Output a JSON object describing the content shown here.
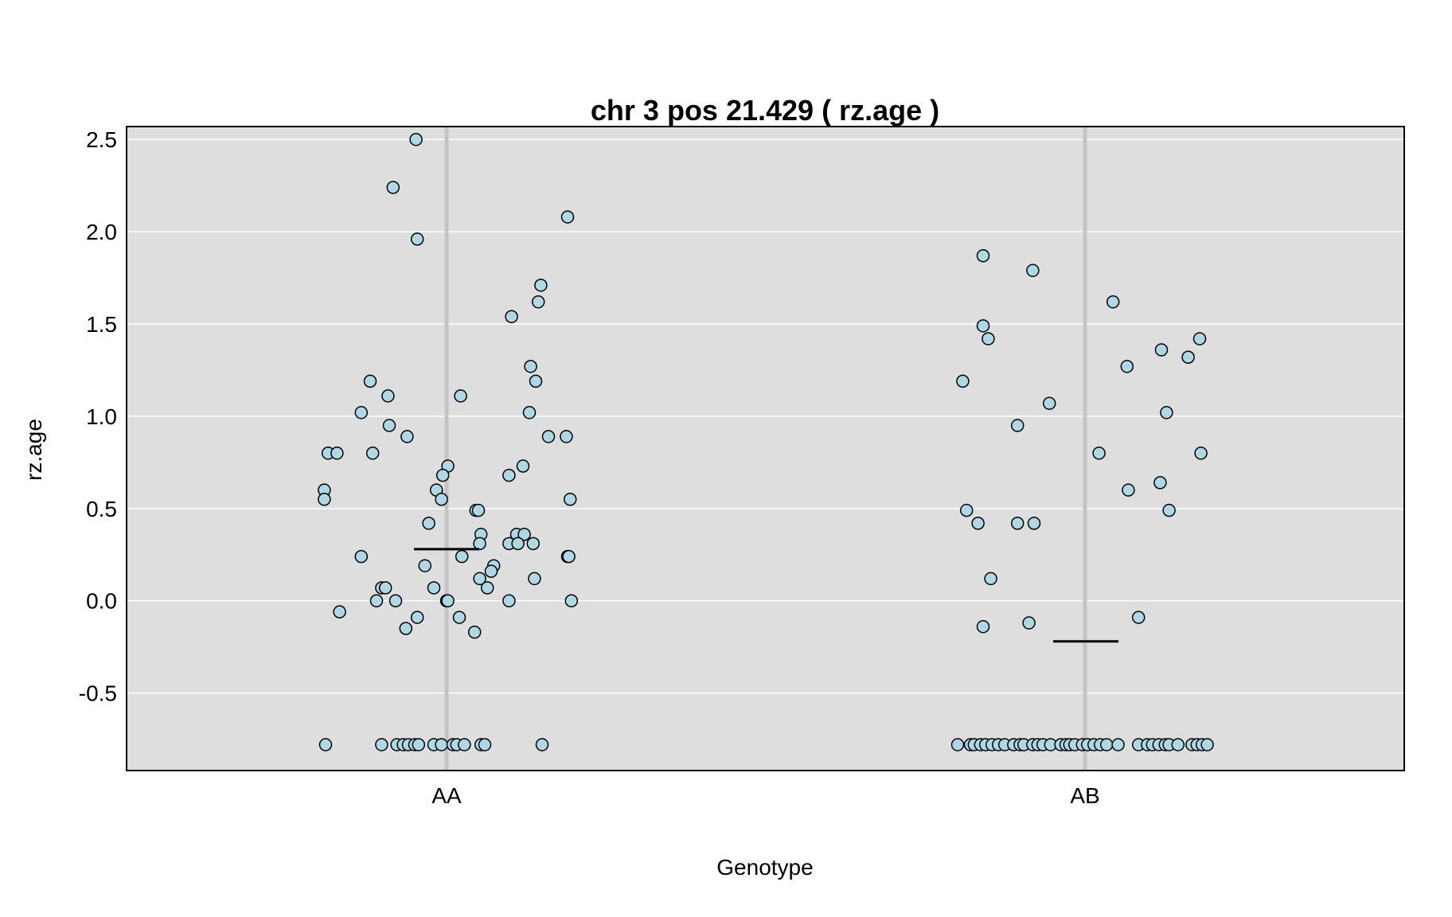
{
  "chart_data": {
    "type": "scatter",
    "title": "chr 3 pos 21.429 ( rz.age )",
    "xlabel": "Genotype",
    "ylabel": "rz.age",
    "categories": [
      "AA",
      "AB"
    ],
    "ylim": [
      -0.92,
      2.57
    ],
    "yticks": [
      "2.5",
      "2.0",
      "1.5",
      "1.0",
      "0.5",
      "0.0",
      "-0.5"
    ],
    "grid": true,
    "colors": {
      "panel": "#dedede",
      "grid": "#ffffff",
      "category_line": "#c4c4c4",
      "point_fill": "#add8e6",
      "point_stroke": "#000000"
    },
    "means": [
      0.28,
      -0.22
    ],
    "series": [
      {
        "category": "AA",
        "points": [
          [
            -0.24,
            2.5
          ],
          [
            -0.42,
            2.24
          ],
          [
            -0.23,
            1.96
          ],
          [
            0.95,
            2.08
          ],
          [
            0.74,
            1.71
          ],
          [
            0.72,
            1.62
          ],
          [
            0.51,
            1.54
          ],
          [
            0.66,
            1.27
          ],
          [
            0.7,
            1.19
          ],
          [
            -0.6,
            1.19
          ],
          [
            -0.46,
            1.11
          ],
          [
            0.11,
            1.11
          ],
          [
            -0.67,
            1.02
          ],
          [
            0.65,
            1.02
          ],
          [
            -0.45,
            0.95
          ],
          [
            -0.31,
            0.89
          ],
          [
            0.8,
            0.89
          ],
          [
            0.94,
            0.89
          ],
          [
            -0.93,
            0.8
          ],
          [
            -0.86,
            0.8
          ],
          [
            -0.58,
            0.8
          ],
          [
            0.01,
            0.73
          ],
          [
            0.6,
            0.73
          ],
          [
            -0.03,
            0.68
          ],
          [
            0.49,
            0.68
          ],
          [
            -0.96,
            0.6
          ],
          [
            -0.08,
            0.6
          ],
          [
            -0.96,
            0.55
          ],
          [
            -0.04,
            0.55
          ],
          [
            0.97,
            0.55
          ],
          [
            0.23,
            0.49
          ],
          [
            0.25,
            0.49
          ],
          [
            -0.14,
            0.42
          ],
          [
            0.27,
            0.36
          ],
          [
            0.55,
            0.36
          ],
          [
            0.61,
            0.36
          ],
          [
            0.26,
            0.31
          ],
          [
            0.49,
            0.31
          ],
          [
            0.56,
            0.31
          ],
          [
            0.68,
            0.31
          ],
          [
            -0.67,
            0.24
          ],
          [
            0.12,
            0.24
          ],
          [
            0.95,
            0.24
          ],
          [
            0.96,
            0.24
          ],
          [
            -0.17,
            0.19
          ],
          [
            0.37,
            0.19
          ],
          [
            0.35,
            0.16
          ],
          [
            0.26,
            0.12
          ],
          [
            0.69,
            0.12
          ],
          [
            -0.51,
            0.07
          ],
          [
            -0.48,
            0.07
          ],
          [
            -0.1,
            0.07
          ],
          [
            0.32,
            0.07
          ],
          [
            -0.55,
            0.0
          ],
          [
            -0.4,
            0.0
          ],
          [
            0.0,
            0.0
          ],
          [
            0.01,
            0.0
          ],
          [
            0.49,
            0.0
          ],
          [
            0.98,
            0.0
          ],
          [
            -0.84,
            -0.06
          ],
          [
            -0.23,
            -0.09
          ],
          [
            0.1,
            -0.09
          ],
          [
            -0.32,
            -0.15
          ],
          [
            0.22,
            -0.17
          ],
          [
            -0.95,
            -0.78
          ],
          [
            -0.51,
            -0.78
          ],
          [
            -0.39,
            -0.78
          ],
          [
            -0.34,
            -0.78
          ],
          [
            -0.3,
            -0.78
          ],
          [
            -0.25,
            -0.78
          ],
          [
            -0.22,
            -0.78
          ],
          [
            -0.1,
            -0.78
          ],
          [
            -0.04,
            -0.78
          ],
          [
            0.05,
            -0.78
          ],
          [
            0.08,
            -0.78
          ],
          [
            0.14,
            -0.78
          ],
          [
            0.27,
            -0.78
          ],
          [
            0.3,
            -0.78
          ],
          [
            0.75,
            -0.78
          ]
        ]
      },
      {
        "category": "AB",
        "points": [
          [
            -0.8,
            1.87
          ],
          [
            -0.41,
            1.79
          ],
          [
            0.22,
            1.62
          ],
          [
            -0.8,
            1.49
          ],
          [
            -0.76,
            1.42
          ],
          [
            0.9,
            1.42
          ],
          [
            0.6,
            1.36
          ],
          [
            0.81,
            1.32
          ],
          [
            0.33,
            1.27
          ],
          [
            -0.96,
            1.19
          ],
          [
            -0.28,
            1.07
          ],
          [
            0.64,
            1.02
          ],
          [
            -0.53,
            0.95
          ],
          [
            0.11,
            0.8
          ],
          [
            0.91,
            0.8
          ],
          [
            0.59,
            0.64
          ],
          [
            0.34,
            0.6
          ],
          [
            -0.93,
            0.49
          ],
          [
            0.66,
            0.49
          ],
          [
            -0.84,
            0.42
          ],
          [
            -0.53,
            0.42
          ],
          [
            -0.4,
            0.42
          ],
          [
            -0.74,
            0.12
          ],
          [
            0.42,
            -0.09
          ],
          [
            -0.44,
            -0.12
          ],
          [
            -0.8,
            -0.14
          ],
          [
            -1.0,
            -0.78
          ],
          [
            -0.9,
            -0.78
          ],
          [
            -0.87,
            -0.78
          ],
          [
            -0.82,
            -0.78
          ],
          [
            -0.78,
            -0.78
          ],
          [
            -0.73,
            -0.78
          ],
          [
            -0.68,
            -0.78
          ],
          [
            -0.63,
            -0.78
          ],
          [
            -0.56,
            -0.78
          ],
          [
            -0.51,
            -0.78
          ],
          [
            -0.48,
            -0.78
          ],
          [
            -0.41,
            -0.78
          ],
          [
            -0.37,
            -0.78
          ],
          [
            -0.33,
            -0.78
          ],
          [
            -0.27,
            -0.78
          ],
          [
            -0.19,
            -0.78
          ],
          [
            -0.15,
            -0.78
          ],
          [
            -0.12,
            -0.78
          ],
          [
            -0.08,
            -0.78
          ],
          [
            -0.02,
            -0.78
          ],
          [
            0.02,
            -0.78
          ],
          [
            0.07,
            -0.78
          ],
          [
            0.12,
            -0.78
          ],
          [
            0.17,
            -0.78
          ],
          [
            0.26,
            -0.78
          ],
          [
            0.42,
            -0.78
          ],
          [
            0.49,
            -0.78
          ],
          [
            0.53,
            -0.78
          ],
          [
            0.58,
            -0.78
          ],
          [
            0.63,
            -0.78
          ],
          [
            0.66,
            -0.78
          ],
          [
            0.73,
            -0.78
          ],
          [
            0.84,
            -0.78
          ],
          [
            0.88,
            -0.78
          ],
          [
            0.92,
            -0.78
          ],
          [
            0.96,
            -0.78
          ]
        ]
      }
    ]
  }
}
